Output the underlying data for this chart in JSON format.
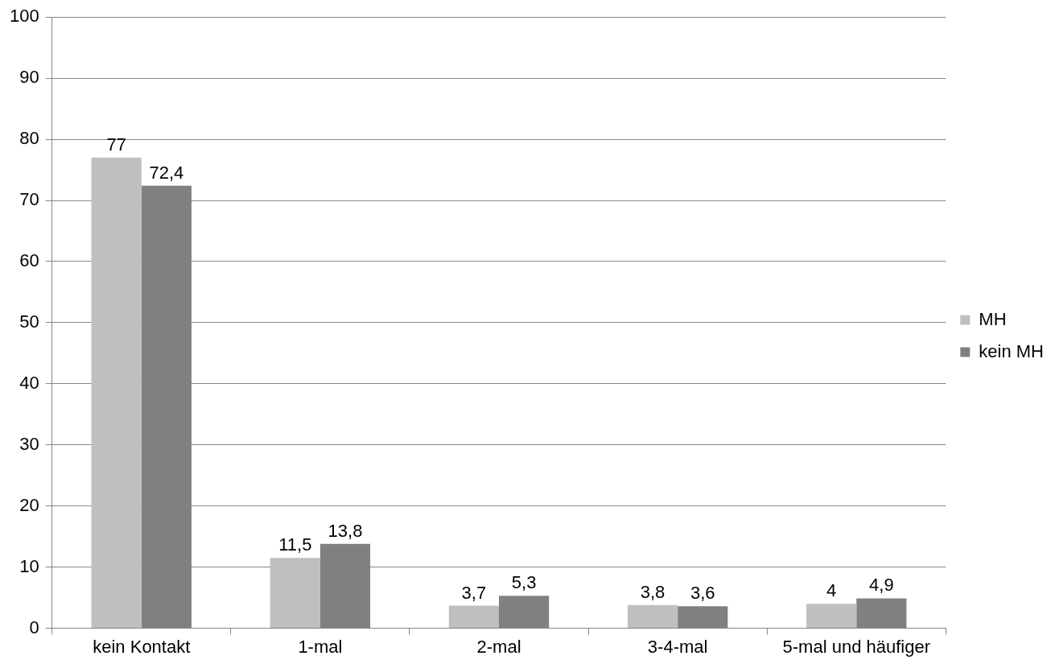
{
  "chart_data": {
    "type": "bar",
    "categories": [
      "kein Kontakt",
      "1-mal",
      "2-mal",
      "3-4-mal",
      "5-mal und häufiger"
    ],
    "series": [
      {
        "name": "MH",
        "color": "#bfbfbf",
        "values": [
          77,
          11.5,
          3.7,
          3.8,
          4
        ],
        "value_labels": [
          "77",
          "11,5",
          "3,7",
          "3,8",
          "4"
        ]
      },
      {
        "name": "kein MH",
        "color": "#808080",
        "values": [
          72.4,
          13.8,
          5.3,
          3.6,
          4.9
        ],
        "value_labels": [
          "72,4",
          "13,8",
          "5,3",
          "3,6",
          "4,9"
        ]
      }
    ],
    "ylim": [
      0,
      100
    ],
    "yticks": [
      0,
      10,
      20,
      30,
      40,
      50,
      60,
      70,
      80,
      90,
      100
    ],
    "grid": "y",
    "legend": "right"
  }
}
